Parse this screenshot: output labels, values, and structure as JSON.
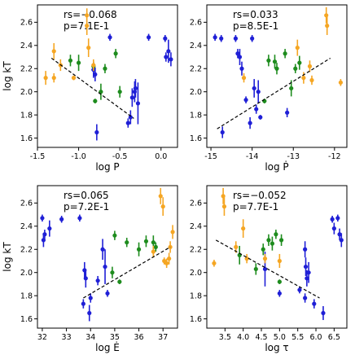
{
  "colors": {
    "blue": "#1f1fd6",
    "green": "#1e8c1e",
    "orange": "#f5a623",
    "fit": "#000000"
  },
  "chart_data": [
    {
      "type": "scatter",
      "xlabel": "log P",
      "ylabel": "log kT",
      "xlim": [
        -1.5,
        0.2
      ],
      "ylim": [
        1.52,
        2.75
      ],
      "xticks": [
        "-1.5",
        "-1.0",
        "-0.5",
        "0.0"
      ],
      "xtick_values": [
        -1.5,
        -1.0,
        -0.5,
        0.0
      ],
      "yticks": [
        "1.6",
        "1.8",
        "2.0",
        "2.2",
        "2.4",
        "2.6"
      ],
      "ytick_values": [
        1.6,
        1.8,
        2.0,
        2.2,
        2.4,
        2.6
      ],
      "stats": [
        "rs=−0.068",
        "p=7.1E-1"
      ],
      "fit_line": {
        "x": [
          -1.33,
          -0.33
        ],
        "y": [
          2.29,
          1.77
        ]
      },
      "series": [
        {
          "color": "blue",
          "points": [
            {
              "x": -0.78,
              "y": 1.65,
              "err": 0.07
            },
            {
              "x": -0.62,
              "y": 2.47,
              "err": 0.03
            },
            {
              "x": -0.4,
              "y": 1.73,
              "err": 0.04
            },
            {
              "x": -0.37,
              "y": 1.78,
              "err": 0.06
            },
            {
              "x": -0.35,
              "y": 1.95,
              "err": 0.08
            },
            {
              "x": -0.32,
              "y": 2.0,
              "err": 0.09
            },
            {
              "x": -0.31,
              "y": 2.03,
              "err": 0.08
            },
            {
              "x": -0.28,
              "y": 1.9,
              "err": 0.18
            },
            {
              "x": -0.15,
              "y": 2.47,
              "err": 0.03
            },
            {
              "x": -0.82,
              "y": 2.19,
              "err": 0.07
            },
            {
              "x": -0.8,
              "y": 2.15,
              "err": 0.06
            },
            {
              "x": 0.05,
              "y": 2.46,
              "err": 0.03
            },
            {
              "x": 0.06,
              "y": 2.3,
              "err": 0.04
            },
            {
              "x": 0.09,
              "y": 2.35,
              "err": 0.1
            },
            {
              "x": 0.12,
              "y": 2.28,
              "err": 0.06
            }
          ]
        },
        {
          "color": "green",
          "points": [
            {
              "x": -1.1,
              "y": 2.27,
              "err": 0.05
            },
            {
              "x": -1.0,
              "y": 2.25,
              "err": 0.07
            },
            {
              "x": -0.82,
              "y": 2.22,
              "err": 0.04
            },
            {
              "x": -0.8,
              "y": 1.92,
              "err": 0.02
            },
            {
              "x": -0.73,
              "y": 2.0,
              "err": 0.07
            },
            {
              "x": -0.68,
              "y": 2.2,
              "err": 0.04
            },
            {
              "x": -0.55,
              "y": 2.33,
              "err": 0.04
            },
            {
              "x": -0.5,
              "y": 2.0,
              "err": 0.05
            }
          ]
        },
        {
          "color": "orange",
          "points": [
            {
              "x": -1.4,
              "y": 2.12,
              "err": 0.06
            },
            {
              "x": -1.3,
              "y": 2.35,
              "err": 0.07
            },
            {
              "x": -1.3,
              "y": 2.12,
              "err": 0.04
            },
            {
              "x": -1.22,
              "y": 2.23,
              "err": 0.05
            },
            {
              "x": -1.06,
              "y": 2.12,
              "err": 0.02
            },
            {
              "x": -0.9,
              "y": 2.66,
              "err": 0.06
            },
            {
              "x": -0.9,
              "y": 2.57,
              "err": 0.08
            },
            {
              "x": -0.88,
              "y": 2.38,
              "err": 0.08
            },
            {
              "x": -0.82,
              "y": 2.23,
              "err": 0.05
            }
          ]
        }
      ]
    },
    {
      "type": "scatter",
      "xlabel": "log Ṗ",
      "ylabel": "",
      "xlim": [
        -15.1,
        -11.7
      ],
      "ylim": [
        1.52,
        2.75
      ],
      "xticks": [
        "-15",
        "-14",
        "-13",
        "-12"
      ],
      "xtick_values": [
        -15,
        -14,
        -13,
        -12
      ],
      "yticks": [
        "1.6",
        "1.8",
        "2.0",
        "2.2",
        "2.4",
        "2.6"
      ],
      "ytick_values": [
        1.6,
        1.8,
        2.0,
        2.2,
        2.4,
        2.6
      ],
      "stats": [
        "rs=0.033",
        "p=8.5E-1"
      ],
      "fit_line": {
        "x": [
          -14.85,
          -12.1
        ],
        "y": [
          1.68,
          2.29
        ]
      },
      "series": [
        {
          "color": "blue",
          "points": [
            {
              "x": -14.9,
              "y": 2.47,
              "err": 0.03
            },
            {
              "x": -14.75,
              "y": 2.46,
              "err": 0.03
            },
            {
              "x": -14.72,
              "y": 1.65,
              "err": 0.05
            },
            {
              "x": -14.4,
              "y": 2.46,
              "err": 0.03
            },
            {
              "x": -14.35,
              "y": 2.33,
              "err": 0.04
            },
            {
              "x": -14.3,
              "y": 2.3,
              "err": 0.07
            },
            {
              "x": -14.25,
              "y": 2.2,
              "err": 0.06
            },
            {
              "x": -14.15,
              "y": 1.93,
              "err": 0.03
            },
            {
              "x": -14.05,
              "y": 1.73,
              "err": 0.05
            },
            {
              "x": -13.9,
              "y": 1.85,
              "err": 0.04
            },
            {
              "x": -13.8,
              "y": 1.78,
              "err": 0.02
            },
            {
              "x": -13.15,
              "y": 1.82,
              "err": 0.04
            },
            {
              "x": -14.0,
              "y": 2.46,
              "err": 0.03
            },
            {
              "x": -13.95,
              "y": 2.03,
              "err": 0.08
            },
            {
              "x": -13.85,
              "y": 2.0,
              "err": 0.1
            }
          ]
        },
        {
          "color": "green",
          "points": [
            {
              "x": -13.7,
              "y": 1.92,
              "err": 0.02
            },
            {
              "x": -13.6,
              "y": 2.27,
              "err": 0.05
            },
            {
              "x": -13.45,
              "y": 2.26,
              "err": 0.06
            },
            {
              "x": -13.4,
              "y": 2.2,
              "err": 0.05
            },
            {
              "x": -13.2,
              "y": 2.33,
              "err": 0.04
            },
            {
              "x": -13.05,
              "y": 2.03,
              "err": 0.07
            },
            {
              "x": -12.95,
              "y": 2.2,
              "err": 0.04
            },
            {
              "x": -12.85,
              "y": 2.25,
              "err": 0.06
            }
          ]
        },
        {
          "color": "orange",
          "points": [
            {
              "x": -14.2,
              "y": 2.12,
              "err": 0.04
            },
            {
              "x": -12.9,
              "y": 2.38,
              "err": 0.07
            },
            {
              "x": -12.75,
              "y": 2.12,
              "err": 0.05
            },
            {
              "x": -12.6,
              "y": 2.22,
              "err": 0.05
            },
            {
              "x": -12.55,
              "y": 2.1,
              "err": 0.04
            },
            {
              "x": -12.2,
              "y": 2.66,
              "err": 0.07
            },
            {
              "x": -12.18,
              "y": 2.57,
              "err": 0.08
            },
            {
              "x": -11.85,
              "y": 2.08,
              "err": 0.03
            }
          ]
        }
      ]
    },
    {
      "type": "scatter",
      "xlabel": "log Ė",
      "ylabel": "log kT",
      "xlim": [
        31.8,
        37.6
      ],
      "ylim": [
        1.52,
        2.75
      ],
      "xticks": [
        "32",
        "33",
        "34",
        "35",
        "36",
        "37"
      ],
      "xtick_values": [
        32,
        33,
        34,
        35,
        36,
        37
      ],
      "yticks": [
        "1.6",
        "1.8",
        "2.0",
        "2.2",
        "2.4",
        "2.6"
      ],
      "ytick_values": [
        1.6,
        1.8,
        2.0,
        2.2,
        2.4,
        2.6
      ],
      "stats": [
        "rs=0.065",
        "p=7.2E-1"
      ],
      "fit_line": {
        "x": [
          33.7,
          37.3
        ],
        "y": [
          1.78,
          2.22
        ]
      },
      "series": [
        {
          "color": "blue",
          "points": [
            {
              "x": 32.0,
              "y": 2.47,
              "err": 0.03
            },
            {
              "x": 32.05,
              "y": 2.28,
              "err": 0.06
            },
            {
              "x": 32.1,
              "y": 2.33,
              "err": 0.04
            },
            {
              "x": 32.3,
              "y": 2.38,
              "err": 0.07
            },
            {
              "x": 32.8,
              "y": 2.46,
              "err": 0.03
            },
            {
              "x": 33.55,
              "y": 2.47,
              "err": 0.03
            },
            {
              "x": 33.7,
              "y": 1.73,
              "err": 0.04
            },
            {
              "x": 33.75,
              "y": 2.02,
              "err": 0.07
            },
            {
              "x": 33.8,
              "y": 1.95,
              "err": 0.08
            },
            {
              "x": 33.95,
              "y": 1.65,
              "err": 0.07
            },
            {
              "x": 34.0,
              "y": 1.78,
              "err": 0.04
            },
            {
              "x": 34.3,
              "y": 1.93,
              "err": 0.04
            },
            {
              "x": 34.5,
              "y": 2.2,
              "err": 0.09
            },
            {
              "x": 34.6,
              "y": 2.05,
              "err": 0.15
            },
            {
              "x": 34.7,
              "y": 1.82,
              "err": 0.03
            }
          ]
        },
        {
          "color": "green",
          "points": [
            {
              "x": 35.0,
              "y": 2.32,
              "err": 0.04
            },
            {
              "x": 34.9,
              "y": 2.0,
              "err": 0.05
            },
            {
              "x": 35.2,
              "y": 1.92,
              "err": 0.02
            },
            {
              "x": 35.5,
              "y": 2.26,
              "err": 0.04
            },
            {
              "x": 36.0,
              "y": 2.2,
              "err": 0.06
            },
            {
              "x": 36.3,
              "y": 2.27,
              "err": 0.05
            },
            {
              "x": 36.6,
              "y": 2.26,
              "err": 0.06
            },
            {
              "x": 36.7,
              "y": 2.22,
              "err": 0.04
            }
          ]
        },
        {
          "color": "orange",
          "points": [
            {
              "x": 36.6,
              "y": 2.18,
              "err": 0.05
            },
            {
              "x": 36.9,
              "y": 2.66,
              "err": 0.07
            },
            {
              "x": 37.0,
              "y": 2.57,
              "err": 0.08
            },
            {
              "x": 37.05,
              "y": 2.1,
              "err": 0.03
            },
            {
              "x": 37.15,
              "y": 2.08,
              "err": 0.04
            },
            {
              "x": 37.25,
              "y": 2.12,
              "err": 0.05
            },
            {
              "x": 37.3,
              "y": 2.22,
              "err": 0.05
            },
            {
              "x": 37.4,
              "y": 2.35,
              "err": 0.06
            }
          ]
        }
      ]
    },
    {
      "type": "scatter",
      "xlabel": "log τ",
      "ylabel": "",
      "xlim": [
        3.0,
        6.85
      ],
      "ylim": [
        1.52,
        2.75
      ],
      "xticks": [
        "3.5",
        "4.0",
        "4.5",
        "5.0",
        "5.5",
        "6.0",
        "6.5"
      ],
      "xtick_values": [
        3.5,
        4.0,
        4.5,
        5.0,
        5.5,
        6.0,
        6.5
      ],
      "yticks": [
        "1.6",
        "1.8",
        "2.0",
        "2.2",
        "2.4",
        "2.6"
      ],
      "ytick_values": [
        1.6,
        1.8,
        2.0,
        2.2,
        2.4,
        2.6
      ],
      "stats": [
        "rs=−0.052",
        "p=7.7E-1"
      ],
      "fit_line": {
        "x": [
          3.25,
          6.1
        ],
        "y": [
          2.28,
          1.78
        ]
      },
      "series": [
        {
          "color": "blue",
          "points": [
            {
              "x": 4.6,
              "y": 2.03,
              "err": 0.15
            },
            {
              "x": 5.0,
              "y": 1.82,
              "err": 0.03
            },
            {
              "x": 5.55,
              "y": 1.85,
              "err": 0.03
            },
            {
              "x": 5.7,
              "y": 1.78,
              "err": 0.04
            },
            {
              "x": 5.7,
              "y": 2.2,
              "err": 0.07
            },
            {
              "x": 5.72,
              "y": 2.05,
              "err": 0.08
            },
            {
              "x": 5.75,
              "y": 1.95,
              "err": 0.07
            },
            {
              "x": 5.8,
              "y": 2.0,
              "err": 0.09
            },
            {
              "x": 5.95,
              "y": 1.73,
              "err": 0.04
            },
            {
              "x": 6.2,
              "y": 1.65,
              "err": 0.06
            },
            {
              "x": 6.45,
              "y": 2.46,
              "err": 0.03
            },
            {
              "x": 6.5,
              "y": 2.38,
              "err": 0.05
            },
            {
              "x": 6.6,
              "y": 2.47,
              "err": 0.03
            },
            {
              "x": 6.65,
              "y": 2.33,
              "err": 0.05
            },
            {
              "x": 6.7,
              "y": 2.28,
              "err": 0.06
            }
          ]
        },
        {
          "color": "green",
          "points": [
            {
              "x": 3.9,
              "y": 2.15,
              "err": 0.08
            },
            {
              "x": 4.35,
              "y": 2.03,
              "err": 0.05
            },
            {
              "x": 4.55,
              "y": 2.2,
              "err": 0.05
            },
            {
              "x": 4.7,
              "y": 2.28,
              "err": 0.05
            },
            {
              "x": 4.8,
              "y": 2.25,
              "err": 0.06
            },
            {
              "x": 4.9,
              "y": 2.33,
              "err": 0.04
            },
            {
              "x": 5.0,
              "y": 1.92,
              "err": 0.02
            },
            {
              "x": 5.05,
              "y": 2.28,
              "err": 0.05
            }
          ]
        },
        {
          "color": "orange",
          "points": [
            {
              "x": 3.2,
              "y": 2.08,
              "err": 0.03
            },
            {
              "x": 3.45,
              "y": 2.66,
              "err": 0.07
            },
            {
              "x": 3.48,
              "y": 2.57,
              "err": 0.08
            },
            {
              "x": 3.8,
              "y": 2.22,
              "err": 0.05
            },
            {
              "x": 4.0,
              "y": 2.38,
              "err": 0.08
            },
            {
              "x": 4.1,
              "y": 2.12,
              "err": 0.04
            },
            {
              "x": 4.6,
              "y": 2.12,
              "err": 0.04
            },
            {
              "x": 5.0,
              "y": 2.1,
              "err": 0.06
            }
          ]
        }
      ]
    }
  ]
}
